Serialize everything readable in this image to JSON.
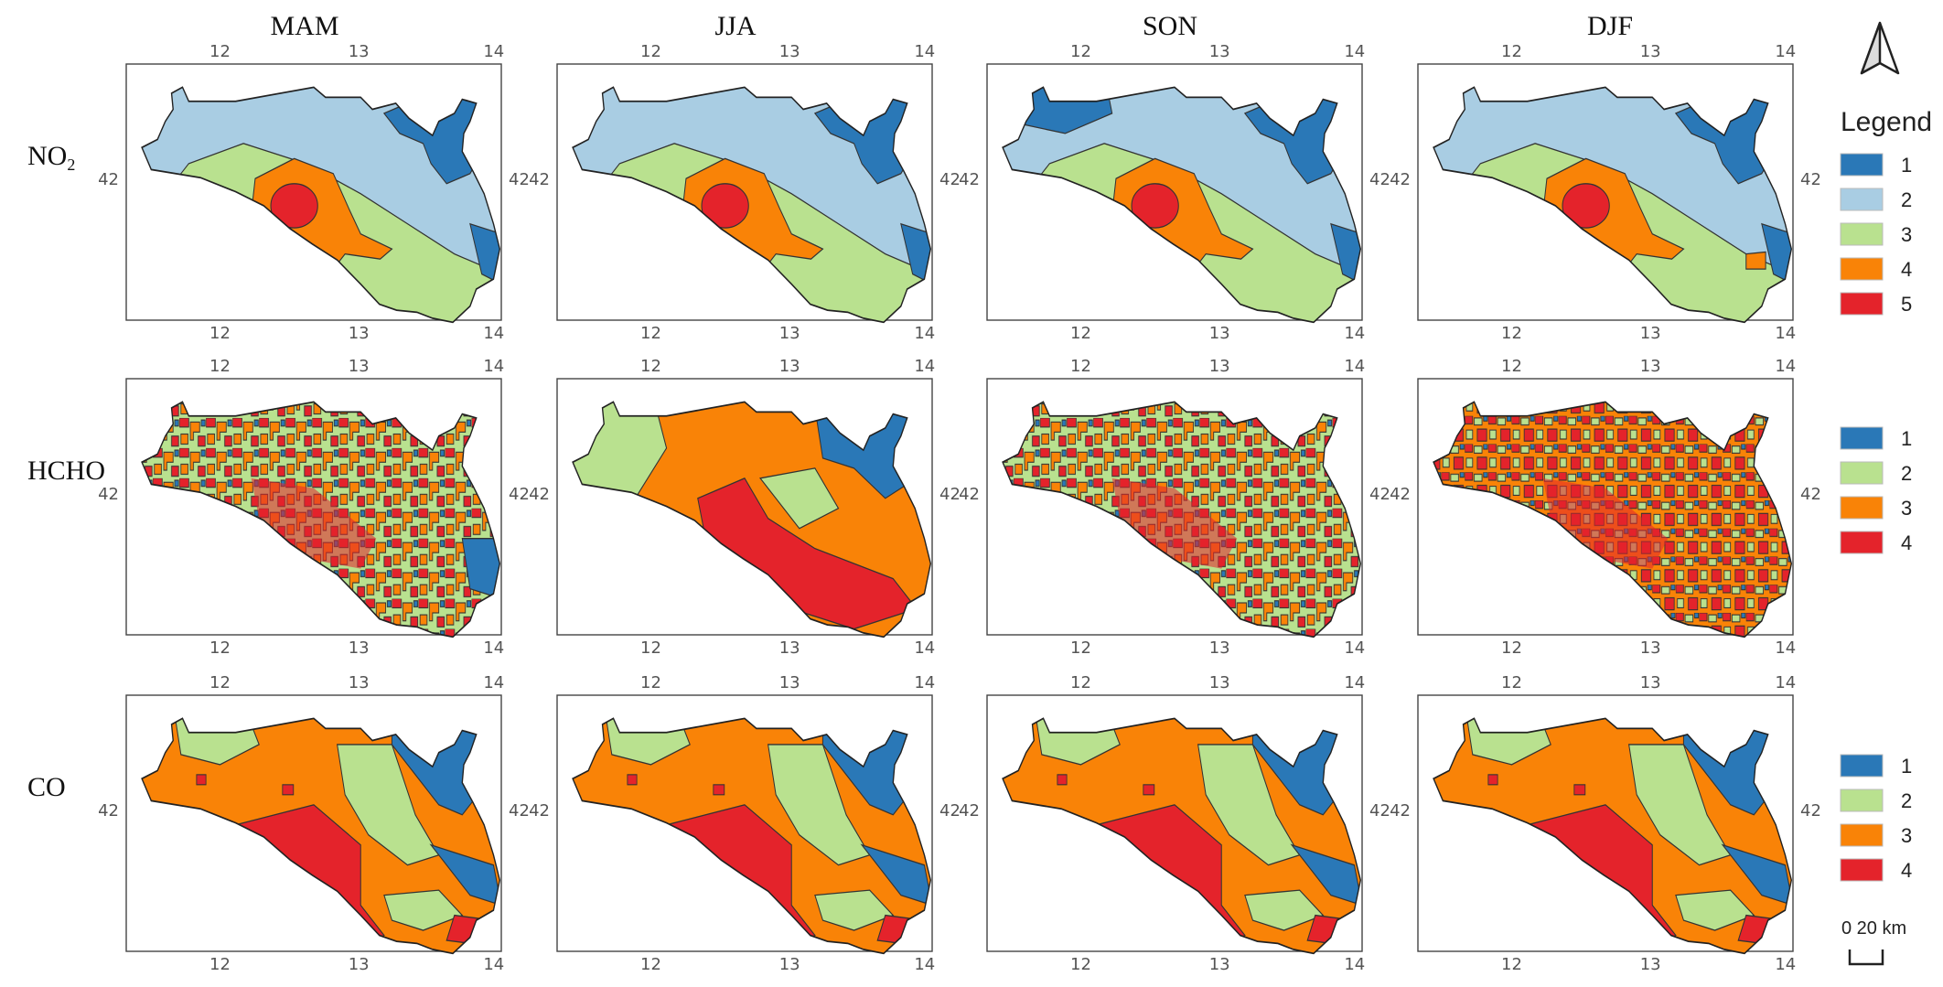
{
  "seasons": [
    "MAM",
    "JJA",
    "SON",
    "DJF"
  ],
  "rows": [
    {
      "label_main": "NO",
      "label_sub": "2",
      "classes": [
        "1",
        "2",
        "3",
        "4",
        "5"
      ]
    },
    {
      "label_main": "HCHO",
      "label_sub": "",
      "classes": [
        "1",
        "2",
        "3",
        "4"
      ]
    },
    {
      "label_main": "CO",
      "label_sub": "",
      "classes": [
        "1",
        "2",
        "3",
        "4"
      ]
    }
  ],
  "lon_ticks": [
    "12",
    "13",
    "14"
  ],
  "lat_tick": "42",
  "legend_title": "Legend",
  "scale_label": "0  20 km",
  "north_arrow": "north-arrow-icon",
  "colors": {
    "1": "#2a78b7",
    "2": "#a9cde3",
    "3": "#f98307",
    "4": "#e4232b",
    "green": "#b9e18f",
    "NO2": {
      "1": "#2a78b7",
      "2": "#a9cde3",
      "3": "#b9e18f",
      "4": "#f98307",
      "5": "#e4232b"
    },
    "HCHO": {
      "1": "#2a78b7",
      "2": "#b9e18f",
      "3": "#f98307",
      "4": "#e4232b"
    },
    "CO": {
      "1": "#2a78b7",
      "2": "#b9e18f",
      "3": "#f98307",
      "4": "#e4232b"
    }
  }
}
